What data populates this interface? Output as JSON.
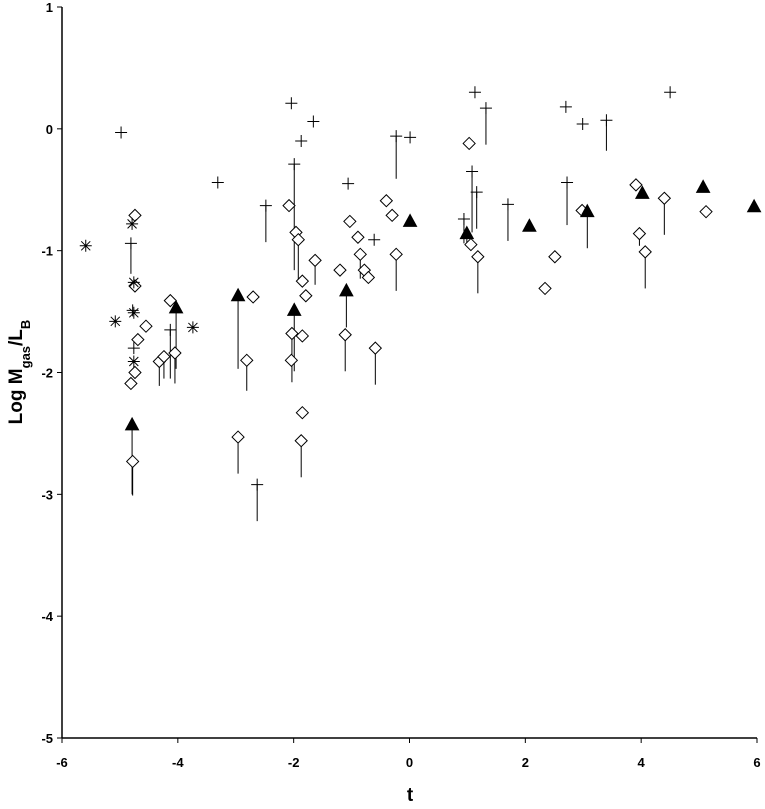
{
  "chart_data": {
    "type": "scatter",
    "x_label": "t",
    "y_label": [
      {
        "text": "Log M"
      },
      {
        "text": "gas",
        "sub": true
      },
      {
        "text": "/L"
      },
      {
        "text": "B",
        "sub": true
      }
    ],
    "xlim": [
      -6,
      6
    ],
    "xticks": [
      -6,
      -4,
      -2,
      0,
      2,
      4,
      6
    ],
    "ylim": [
      -5,
      1
    ],
    "yticks": [
      -5,
      -4,
      -3,
      -2,
      -1,
      0,
      1
    ],
    "grid": false,
    "series": [
      {
        "marker": "diamond",
        "color": "#000000",
        "x": [
          -4.78,
          -4.81,
          -4.74,
          -4.74,
          -4.74,
          -4.69,
          -4.55,
          -4.32,
          -4.24,
          -4.13,
          -4.05,
          -2.96,
          -2.81,
          -2.7,
          -2.08,
          -2.04,
          -2.03,
          -1.96,
          -1.92,
          -1.85,
          -1.85,
          -1.87,
          -1.85,
          -1.79,
          -1.63,
          -1.2,
          -1.11,
          -1.03,
          -0.89,
          -0.85,
          -0.78,
          -0.71,
          -0.59,
          -0.4,
          -0.3,
          -0.23,
          1.03,
          1.06,
          1.18,
          2.34,
          2.51,
          2.98,
          3.91,
          3.97,
          4.07,
          4.4,
          5.12
        ],
        "y": [
          -2.73,
          -2.09,
          -2.0,
          -0.71,
          -1.29,
          -1.73,
          -1.62,
          -1.91,
          -1.87,
          -1.41,
          -1.84,
          -2.53,
          -1.9,
          -1.38,
          -0.63,
          -1.9,
          -1.68,
          -0.85,
          -0.91,
          -1.25,
          -2.33,
          -2.56,
          -1.7,
          -1.37,
          -1.08,
          -1.16,
          -1.69,
          -0.76,
          -0.89,
          -1.03,
          -1.16,
          -1.22,
          -1.8,
          -0.59,
          -0.71,
          -1.03,
          -0.12,
          -0.95,
          -1.05,
          -1.31,
          -1.05,
          -0.67,
          -0.46,
          -0.86,
          -1.01,
          -0.57,
          -0.68
        ],
        "yerr": [
          0.28,
          null,
          null,
          null,
          null,
          null,
          null,
          0.2,
          0.18,
          null,
          0.25,
          0.3,
          0.25,
          null,
          null,
          null,
          0.4,
          null,
          0.35,
          null,
          null,
          0.3,
          null,
          null,
          0.2,
          null,
          0.3,
          null,
          null,
          0.2,
          null,
          null,
          0.3,
          null,
          null,
          0.3,
          null,
          null,
          0.3,
          null,
          null,
          null,
          null,
          0.1,
          0.3,
          0.3,
          null
        ]
      },
      {
        "marker": "plus",
        "color": "#000000",
        "x": [
          -4.98,
          -3.31,
          -2.48,
          -2.63,
          -2.04,
          -1.99,
          -1.87,
          -1.66,
          -1.06,
          -0.61,
          -0.23,
          0.01,
          1.08,
          1.13,
          1.16,
          1.32,
          1.7,
          2.7,
          2.72,
          2.99,
          3.4,
          4.5,
          -4.81,
          -4.78,
          -4.13,
          0.94,
          -4.76
        ],
        "y": [
          -0.03,
          -0.44,
          -0.63,
          -2.92,
          0.21,
          -0.29,
          -0.1,
          0.06,
          -0.45,
          -0.91,
          -0.06,
          -0.07,
          -0.35,
          0.3,
          -0.52,
          0.17,
          -0.62,
          0.18,
          -0.44,
          0.04,
          0.07,
          0.3,
          -0.94,
          -1.49,
          -1.65,
          -0.74,
          -1.8
        ],
        "yerr": [
          null,
          null,
          0.3,
          0.3,
          null,
          0.87,
          null,
          null,
          null,
          null,
          0.35,
          null,
          0.5,
          null,
          0.3,
          0.3,
          0.3,
          null,
          0.35,
          null,
          0.25,
          null,
          0.25,
          null,
          0.4,
          0.2,
          null
        ]
      },
      {
        "marker": "asterisk",
        "color": "#000000",
        "x": [
          -5.59,
          -5.08,
          -4.79,
          -4.76,
          -4.76,
          -4.76,
          -3.74
        ],
        "y": [
          -0.96,
          -1.58,
          -0.78,
          -1.26,
          -1.51,
          -1.91,
          -1.63
        ],
        "yerr": [
          null,
          null,
          null,
          null,
          null,
          null,
          null
        ]
      },
      {
        "marker": "triangle",
        "color": "#000000",
        "x": [
          -4.79,
          -4.03,
          -2.96,
          -1.99,
          -1.09,
          0.01,
          0.99,
          2.07,
          3.07,
          4.02,
          5.07,
          5.95
        ],
        "y": [
          -2.43,
          -1.47,
          -1.37,
          -1.49,
          -1.33,
          -0.76,
          -0.86,
          -0.8,
          -0.68,
          -0.53,
          -0.48,
          -0.64
        ],
        "yerr": [
          0.57,
          0.5,
          0.6,
          0.5,
          0.3,
          null,
          0.1,
          null,
          0.3,
          null,
          null,
          null
        ]
      }
    ]
  }
}
